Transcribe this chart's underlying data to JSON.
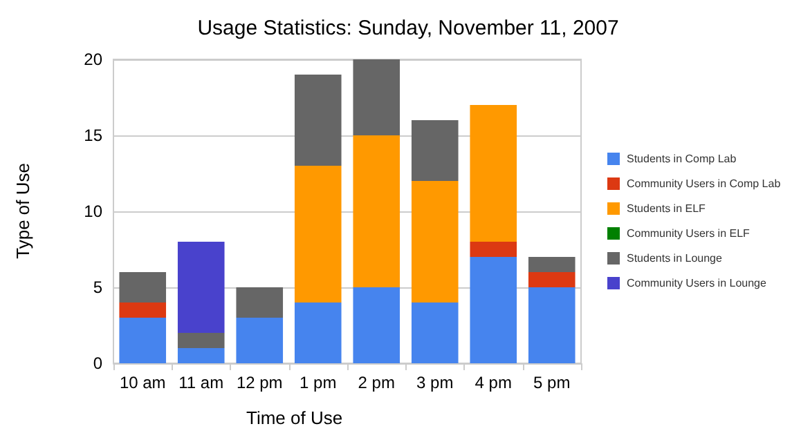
{
  "chart_data": {
    "type": "bar",
    "title": "Usage Statistics: Sunday, November 11, 2007",
    "xlabel": "Time of Use",
    "ylabel": "Type of Use",
    "categories": [
      "10 am",
      "11 am",
      "12 pm",
      "1 pm",
      "2 pm",
      "3 pm",
      "4 pm",
      "5 pm"
    ],
    "stacked": true,
    "ylim": [
      0,
      20
    ],
    "yticks": [
      0,
      5,
      10,
      15,
      20
    ],
    "grid": "y",
    "legend": "right",
    "series": [
      {
        "name": "Students in Comp Lab",
        "color": "#4684ee",
        "values": [
          3,
          1,
          3,
          4,
          5,
          4,
          7,
          5
        ]
      },
      {
        "name": "Community Users in Comp Lab",
        "color": "#dc3912",
        "values": [
          1,
          0,
          0,
          0,
          0,
          0,
          1,
          1
        ]
      },
      {
        "name": "Students in ELF",
        "color": "#ff9900",
        "values": [
          0,
          0,
          0,
          9,
          10,
          8,
          9,
          0
        ]
      },
      {
        "name": "Community Users in ELF",
        "color": "#008000",
        "values": [
          0,
          0,
          0,
          0,
          0,
          0,
          0,
          0
        ]
      },
      {
        "name": "Students in Lounge",
        "color": "#666666",
        "values": [
          2,
          1,
          2,
          6,
          5,
          4,
          0,
          1
        ]
      },
      {
        "name": "Community Users in Lounge",
        "color": "#4942cc",
        "values": [
          0,
          6,
          0,
          0,
          0,
          0,
          0,
          0
        ]
      }
    ]
  }
}
